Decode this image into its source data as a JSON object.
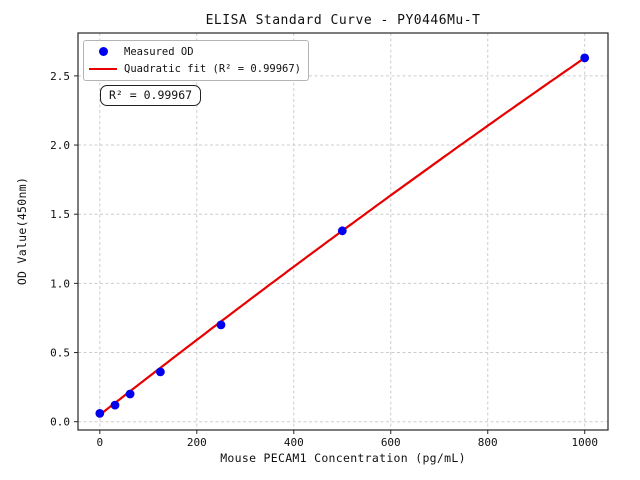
{
  "figure": {
    "background": "#ffffff"
  },
  "chart_data": {
    "type": "scatter",
    "title": "ELISA Standard Curve - PY0446Mu-T",
    "xlabel": "Mouse PECAM1 Concentration (pg/mL)",
    "ylabel": "OD Value(450nm)",
    "xlim": [
      -45,
      1048
    ],
    "ylim": [
      -0.06,
      2.81
    ],
    "xticks": [
      0,
      200,
      400,
      600,
      800,
      1000
    ],
    "xtick_labels": [
      "0",
      "200",
      "400",
      "600",
      "800",
      "1000"
    ],
    "yticks": [
      0.0,
      0.5,
      1.0,
      1.5,
      2.0,
      2.5
    ],
    "ytick_labels": [
      "0.0",
      "0.5",
      "1.0",
      "1.5",
      "2.0",
      "2.5"
    ],
    "grid": true,
    "colors": {
      "points": "#0000ee",
      "fit_line": "#e80000"
    },
    "r_squared": 0.99967,
    "series": [
      {
        "name": "Quadratic fit",
        "type": "line",
        "color": "#e80000",
        "coeffs": {
          "a": 0.05,
          "b": 0.00274,
          "c": -1.6e-07
        },
        "x_start": 0,
        "x_end": 1000
      },
      {
        "name": "Measured OD",
        "type": "scatter",
        "color": "#0000ee",
        "points": [
          [
            0,
            0.06
          ],
          [
            31.25,
            0.12
          ],
          [
            62.5,
            0.2
          ],
          [
            125,
            0.36
          ],
          [
            250,
            0.7
          ],
          [
            500,
            1.38
          ],
          [
            1000,
            2.63
          ]
        ]
      }
    ],
    "legend": {
      "position": "upper left",
      "entries": [
        {
          "label": "Measured OD",
          "marker": "dot",
          "color": "#0000ee"
        },
        {
          "label": "Quadratic fit (R² = 0.99967)",
          "marker": "line",
          "color": "#e80000"
        }
      ]
    },
    "annotation": {
      "text": "R² = 0.99967"
    }
  }
}
